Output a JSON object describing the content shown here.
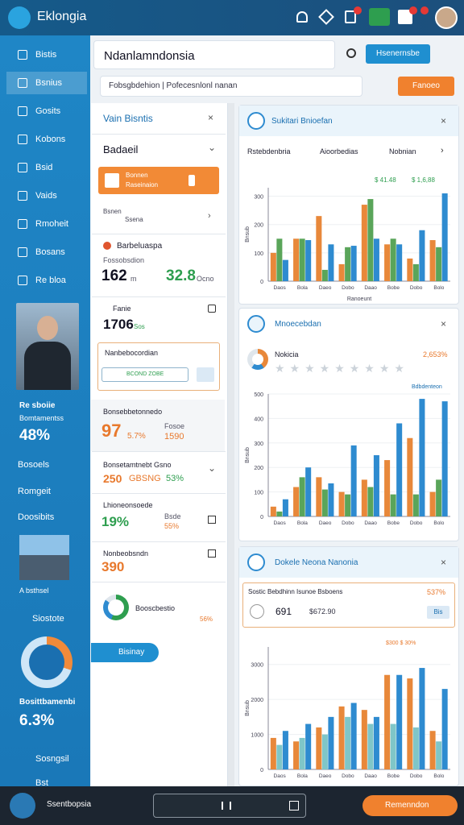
{
  "header": {
    "brand": "Eklongia"
  },
  "sidebar": {
    "nav": [
      "Bistis",
      "Bsnius",
      "Gosits",
      "Kobons",
      "Bsid",
      "Vaids",
      "Rmoheit",
      "Bosans",
      "Re bloa"
    ],
    "profile_title": "Re sboiie",
    "profile_sub": "Bomtamentss",
    "profile_value": "48%",
    "links": [
      "Bosoels",
      "Romgeit",
      "Doosibits"
    ],
    "city_caption": "A bsthsel",
    "city_link": "Siostote",
    "donut_title": "Bosittbamenbi",
    "donut_value": "6.3%",
    "bottom_links": [
      "Sosngsil",
      "Bst"
    ]
  },
  "topbar": {
    "title": "Ndanlamndonsia",
    "button": "Hsenernsbe",
    "search": "Fobsgbdehion  |  Pofecesnlonl nanan",
    "action": "Fanoeo"
  },
  "panel": {
    "title": "Vain Bisntis",
    "select": "Badaeil",
    "promo": {
      "title": "Bonnen",
      "sub": "Raseinaion"
    },
    "item1": {
      "title": "Bsnen",
      "sub": "Ssena"
    },
    "stat1": {
      "title": "Barbeluaspa",
      "sub": "Fossobsdion",
      "a": "162",
      "a_unit": "m",
      "b": "32.8",
      "b_unit": "Ocno"
    },
    "stat2": {
      "title": "Fanie",
      "a": "1706",
      "a_unit": "Sos"
    },
    "box": {
      "title": "Nanbebocordian",
      "input": "BCOND ZOBE"
    },
    "stat3": {
      "title": "Bonsebbetonnedo",
      "a": "97",
      "b": "5.7%",
      "c_title": "Fosoe",
      "c": "1590"
    },
    "stat4": {
      "title": "Bonsetamtnebt Gsno",
      "a": "250",
      "a_unit": "GBSNG",
      "b": "53%"
    },
    "stat5": {
      "title": "Lhioneonsoede",
      "a": "19%",
      "b_title": "Bsde",
      "b": "55%"
    },
    "stat6": {
      "title": "Nonbeobsndn",
      "a": "390"
    },
    "donut": {
      "title": "Booscbestio",
      "value": "56%"
    },
    "button": "Bisinay"
  },
  "cards": [
    {
      "title": "Sukitari Bnioefan",
      "tabs": [
        "Rstebdenbria",
        "Aioorbedias",
        "Nobnian"
      ],
      "notes": [
        "$ 41.48",
        "$ 1,6,88"
      ],
      "chart": {
        "ylim": [
          0,
          330
        ],
        "yticks": [
          0,
          100,
          200,
          300
        ],
        "xlabel": "Ranoeunt",
        "ylabel": "Bnsub",
        "categories": [
          "Daos",
          "Bola",
          "Daeo",
          "Dobo",
          "Daao",
          "Bobe",
          "Dobo",
          "Bolo"
        ],
        "series": [
          {
            "color": "#e8883a",
            "values": [
              100,
              150,
              230,
              60,
              270,
              130,
              80,
              145
            ]
          },
          {
            "color": "#5aa55a",
            "values": [
              150,
              150,
              40,
              120,
              290,
              150,
              60,
              120
            ]
          },
          {
            "color": "#2e8bd0",
            "values": [
              75,
              145,
              130,
              125,
              150,
              130,
              180,
              310
            ]
          }
        ]
      }
    },
    {
      "title": "Mnoecebdan",
      "row_title": "Nokicia",
      "row_value": "2,653%",
      "notes": [
        "Bdbdenteon"
      ],
      "chart": {
        "ylim": [
          0,
          500
        ],
        "yticks": [
          0,
          100,
          200,
          300,
          400,
          500
        ],
        "ylabel": "Bnsub",
        "categories": [
          "Daos",
          "Bola",
          "Daeo",
          "Dobo",
          "Daao",
          "Bobe",
          "Dobo",
          "Bolo"
        ],
        "series": [
          {
            "color": "#e8883a",
            "values": [
              40,
              120,
              160,
              100,
              150,
              230,
              320,
              100
            ]
          },
          {
            "color": "#5aa55a",
            "values": [
              20,
              160,
              110,
              90,
              120,
              90,
              90,
              150
            ]
          },
          {
            "color": "#2e8bd0",
            "values": [
              70,
              200,
              135,
              290,
              250,
              380,
              480,
              470
            ]
          }
        ]
      }
    },
    {
      "title": "Dokele Neona Nanonia",
      "box_title": "Sostic Bebdhinn Isunoe Bsboens",
      "box_pct": "537%",
      "box_a": "691",
      "box_b": "$672.90",
      "box_btn": "Bis",
      "notes": [
        "$300 $ 30%"
      ],
      "chart": {
        "ylim": [
          0,
          3500
        ],
        "yticks": [
          0,
          1000,
          2000,
          3000
        ],
        "ylabel": "Bnsub",
        "categories": [
          "Daos",
          "Bola",
          "Daeo",
          "Dobo",
          "Daao",
          "Bobe",
          "Dobo",
          "Bolo"
        ],
        "series": [
          {
            "color": "#e8883a",
            "values": [
              900,
              800,
              1200,
              1800,
              1700,
              2700,
              2600,
              1100
            ]
          },
          {
            "color": "#7fc6c8",
            "values": [
              700,
              900,
              1000,
              1500,
              1300,
              1300,
              1200,
              800
            ]
          },
          {
            "color": "#2e8bd0",
            "values": [
              1100,
              1300,
              1500,
              1900,
              1500,
              2700,
              2900,
              2300
            ]
          }
        ]
      }
    }
  ],
  "bottombar": {
    "title": "Ssentbopsia",
    "button": "Remenndon"
  }
}
